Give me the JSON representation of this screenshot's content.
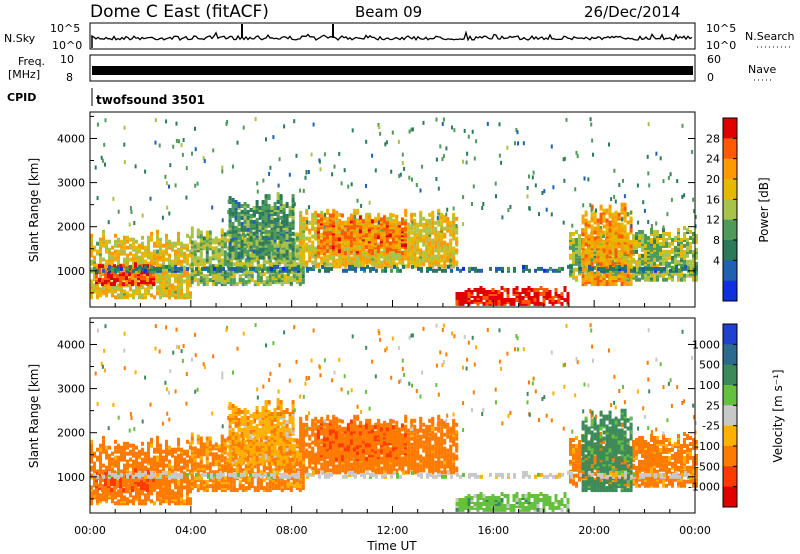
{
  "header": {
    "radar": "Dome C East (fitACF)",
    "beam": "Beam 09",
    "date": "26/Dec/2014"
  },
  "strips": {
    "nsky_label": "N.Sky",
    "nsky_ticks": [
      "10^5",
      "10^0"
    ],
    "nsearch_label": "N.Search",
    "freq_label_1": "Freq.",
    "freq_label_2": "[MHz]",
    "freq_ticks": [
      "10",
      "8"
    ],
    "nave_label": "Nave",
    "nave_ticks": [
      "60",
      "0"
    ],
    "cpid_label": "CPID",
    "cpid_value": "twofsound 3501"
  },
  "chart_data": [
    {
      "type": "heatmap",
      "ylabel": "Slant Range [km]",
      "colorbar_label": "Power [dB]",
      "colorbar_ticks": [
        "28",
        "24",
        "20",
        "16",
        "12",
        "8",
        "4"
      ],
      "colorbar_colors": [
        "#e00000",
        "#ff5a00",
        "#ff9900",
        "#e6b800",
        "#a9c24a",
        "#4f9a5a",
        "#2c7a5a",
        "#2060b0",
        "#1030e0"
      ],
      "y_ticks": [
        "4000",
        "3000",
        "2000",
        "1000"
      ],
      "y_tick_values": [
        4000,
        3000,
        2000,
        1000
      ],
      "ylim": [
        180,
        4600
      ],
      "xlim": [
        0,
        24
      ]
    },
    {
      "type": "heatmap",
      "ylabel": "Slant Range [km]",
      "colorbar_label": "Velocity [m s⁻¹]",
      "colorbar_ticks": [
        "1000",
        "500",
        "100",
        "25",
        "-25",
        "-100",
        "-500",
        "-1000"
      ],
      "colorbar_colors": [
        "#2040d0",
        "#2c6a90",
        "#3c8a5a",
        "#66c040",
        "#c8c8c8",
        "#ffb000",
        "#ff7a00",
        "#ff3a00",
        "#e00000"
      ],
      "y_ticks": [
        "4000",
        "3000",
        "2000",
        "1000"
      ],
      "y_tick_values": [
        4000,
        3000,
        2000,
        1000
      ],
      "ylim": [
        180,
        4600
      ],
      "xlim": [
        0,
        24
      ],
      "xlabel": "Time UT",
      "x_ticks": [
        "00:00",
        "04:00",
        "08:00",
        "12:00",
        "16:00",
        "20:00",
        "00:00"
      ],
      "x_tick_values": [
        0,
        4,
        8,
        12,
        16,
        20,
        24
      ]
    }
  ],
  "echo_regions": [
    {
      "t0": 0.0,
      "t1": 4.0,
      "r0": 400,
      "r1": 1900,
      "power": 18,
      "vel": -200
    },
    {
      "t0": 0.2,
      "t1": 2.5,
      "r0": 700,
      "r1": 1200,
      "power": 27,
      "vel": -450
    },
    {
      "t0": 4.0,
      "t1": 8.5,
      "r0": 700,
      "r1": 2000,
      "power": 14,
      "vel": -150
    },
    {
      "t0": 5.5,
      "t1": 8.0,
      "r0": 1300,
      "r1": 2800,
      "power": 10,
      "vel": -80
    },
    {
      "t0": 8.3,
      "t1": 14.5,
      "r0": 1100,
      "r1": 2400,
      "power": 18,
      "vel": -250
    },
    {
      "t0": 9.0,
      "t1": 12.5,
      "r0": 1400,
      "r1": 2300,
      "power": 24,
      "vel": -400
    },
    {
      "t0": 14.5,
      "t1": 19.0,
      "r0": 250,
      "r1": 650,
      "power": 30,
      "vel": 60
    },
    {
      "t0": 19.0,
      "t1": 24.0,
      "r0": 800,
      "r1": 2000,
      "power": 14,
      "vel": -180
    },
    {
      "t0": 19.5,
      "t1": 21.5,
      "r0": 700,
      "r1": 2600,
      "power": 22,
      "vel": 200
    },
    {
      "t0": 0.0,
      "t1": 24.0,
      "r0": 1000,
      "r1": 1100,
      "power": 6,
      "vel": 0
    }
  ]
}
